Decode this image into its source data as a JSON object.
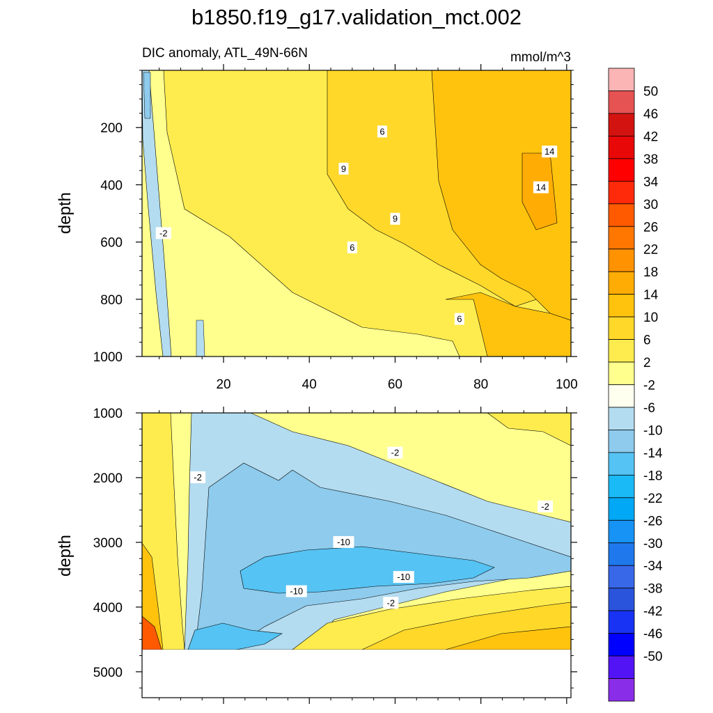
{
  "chart_data": {
    "title": "b1850.f19_g17.validation_mct.002",
    "subtitle_left": "DIC anomaly, ATL_49N-66N",
    "units": "mmol/m^3",
    "type": "heatmap",
    "colorbar": {
      "labels": [
        "50",
        "46",
        "42",
        "38",
        "34",
        "30",
        "26",
        "22",
        "18",
        "14",
        "10",
        "6",
        "2",
        "-2",
        "-6",
        "-10",
        "-14",
        "-18",
        "-22",
        "-26",
        "-30",
        "-34",
        "-38",
        "-42",
        "-46",
        "-50"
      ],
      "colors": [
        "#fbb5b4",
        "#e55353",
        "#d3130f",
        "#e90808",
        "#ff0000",
        "#ff2a0a",
        "#ff5a00",
        "#ff7600",
        "#ff9200",
        "#ffad05",
        "#ffc30e",
        "#ffd82a",
        "#feec4e",
        "#ffff8e",
        "#fffff0",
        "#b4dcf0",
        "#8ecbed",
        "#55c3f3",
        "#1abaf6",
        "#00a8f6",
        "#1693f4",
        "#1f79ec",
        "#3867e8",
        "#2a54dc",
        "#1833f3",
        "#0000fe",
        "#5214f5",
        "#8a2de8"
      ]
    },
    "panels": [
      {
        "name": "upper",
        "ylabel": "depth",
        "xlim": [
          1,
          101
        ],
        "ylim": [
          0,
          1000
        ],
        "xticks": [
          20,
          40,
          60,
          80,
          100
        ],
        "yticks": [
          200,
          400,
          600,
          800,
          1000
        ],
        "contour_labels": [
          {
            "text": "-2",
            "x": 6,
            "y": 570
          },
          {
            "text": "9",
            "x": 48,
            "y": 345
          },
          {
            "text": "6",
            "x": 57,
            "y": 215
          },
          {
            "text": "9",
            "x": 60,
            "y": 520
          },
          {
            "text": "6",
            "x": 50,
            "y": 620
          },
          {
            "text": "14",
            "x": 96,
            "y": 285
          },
          {
            "text": "14",
            "x": 94,
            "y": 410
          },
          {
            "text": "6",
            "x": 75,
            "y": 870
          }
        ]
      },
      {
        "name": "lower",
        "ylabel": "depth",
        "xlim": [
          1,
          101
        ],
        "ylim": [
          1000,
          5400
        ],
        "yticks": [
          1000,
          2000,
          3000,
          4000,
          5000
        ],
        "data_bottom_depth": 4620,
        "contour_labels": [
          {
            "text": "-2",
            "x": 14,
            "y": 2000
          },
          {
            "text": "-2",
            "x": 60,
            "y": 1620
          },
          {
            "text": "-2",
            "x": 95,
            "y": 2450
          },
          {
            "text": "-10",
            "x": 48,
            "y": 3000
          },
          {
            "text": "-10",
            "x": 62,
            "y": 3540
          },
          {
            "text": "-10",
            "x": 37,
            "y": 3760
          },
          {
            "text": "-2",
            "x": 59,
            "y": 3940
          }
        ]
      }
    ]
  }
}
